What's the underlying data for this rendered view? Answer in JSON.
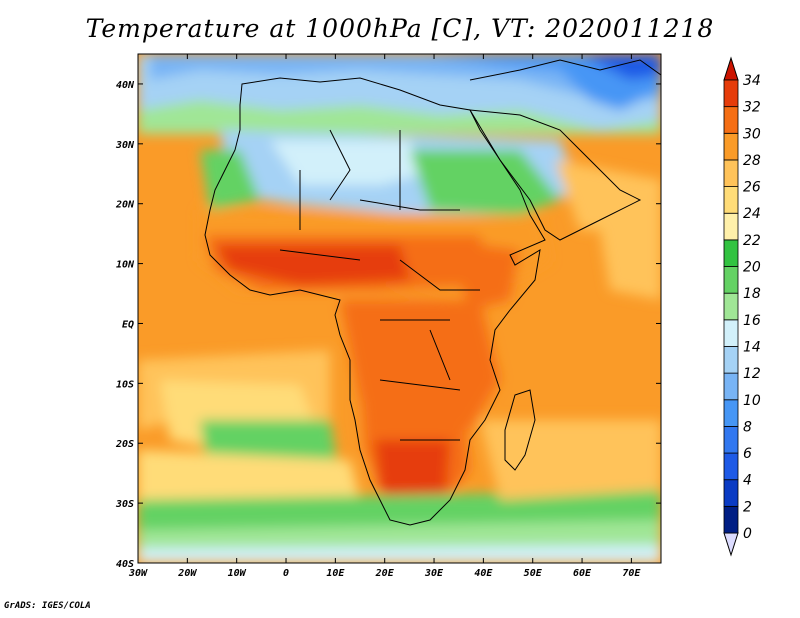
{
  "title": "Temperature at 1000hPa [C], VT: 2020011218",
  "credit": "GrADS: IGES/COLA",
  "map": {
    "lon_range": [
      -30,
      76
    ],
    "lat_range": [
      -40,
      45
    ],
    "lon_ticks": [
      {
        "value": -30,
        "label": "30W"
      },
      {
        "value": -20,
        "label": "20W"
      },
      {
        "value": -10,
        "label": "10W"
      },
      {
        "value": 0,
        "label": "0"
      },
      {
        "value": 10,
        "label": "10E"
      },
      {
        "value": 20,
        "label": "20E"
      },
      {
        "value": 30,
        "label": "30E"
      },
      {
        "value": 40,
        "label": "40E"
      },
      {
        "value": 50,
        "label": "50E"
      },
      {
        "value": 60,
        "label": "60E"
      },
      {
        "value": 70,
        "label": "70E"
      }
    ],
    "lat_ticks": [
      {
        "value": 40,
        "label": "40N"
      },
      {
        "value": 30,
        "label": "30N"
      },
      {
        "value": 20,
        "label": "20N"
      },
      {
        "value": 10,
        "label": "10N"
      },
      {
        "value": 0,
        "label": "EQ"
      },
      {
        "value": -10,
        "label": "10S"
      },
      {
        "value": -20,
        "label": "20S"
      },
      {
        "value": -30,
        "label": "30S"
      },
      {
        "value": -40,
        "label": "40S"
      }
    ]
  },
  "colorbar": {
    "levels": [
      0,
      2,
      4,
      6,
      8,
      10,
      12,
      14,
      16,
      18,
      20,
      22,
      24,
      26,
      28,
      30,
      32,
      34
    ],
    "colors": [
      "#001e84",
      "#0a3bc4",
      "#1e5ae6",
      "#3278f0",
      "#4696f5",
      "#78b4f5",
      "#a5d2f5",
      "#d2f0fa",
      "#a0e696",
      "#64d264",
      "#32c341",
      "#fff0aa",
      "#ffdc78",
      "#ffc35a",
      "#fa9b28",
      "#f56e14",
      "#e63c0a"
    ],
    "below_color": "#dcdcff",
    "above_color": "#cc1400"
  }
}
